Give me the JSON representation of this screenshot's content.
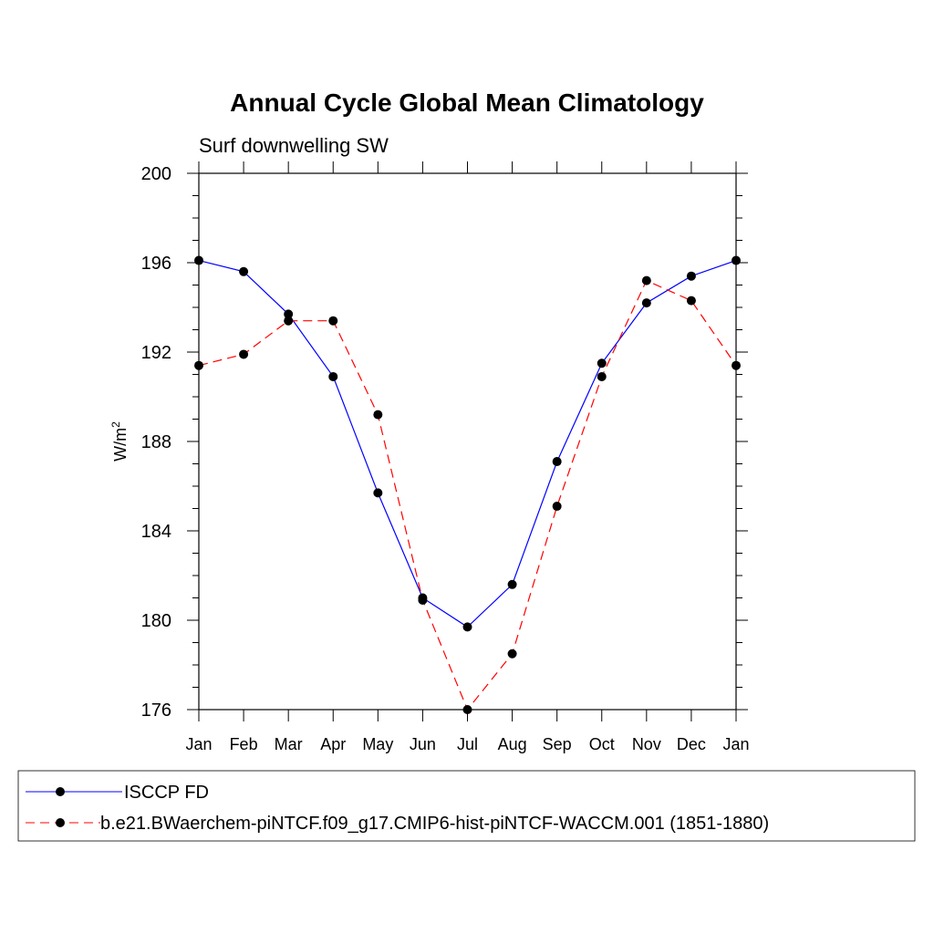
{
  "chart_data": {
    "type": "line",
    "title": "Annual Cycle Global Mean Climatology",
    "subtitle": "Surf downwelling SW",
    "ylabel_base": "W/m",
    "ylabel_sup": "2",
    "xlabel": "",
    "categories": [
      "Jan",
      "Feb",
      "Mar",
      "Apr",
      "May",
      "Jun",
      "Jul",
      "Aug",
      "Sep",
      "Oct",
      "Nov",
      "Dec",
      "Jan"
    ],
    "yticks": [
      176,
      180,
      184,
      188,
      192,
      196,
      200
    ],
    "ylim": [
      176,
      200
    ],
    "series": [
      {
        "name": "ISCCP FD",
        "color": "#0000ff",
        "dashed": false,
        "values": [
          196.1,
          195.6,
          193.7,
          190.9,
          185.7,
          181.0,
          179.7,
          181.6,
          187.1,
          191.5,
          194.2,
          195.4,
          196.1
        ]
      },
      {
        "name": "b.e21.BWaerchem-piNTCF.f09_g17.CMIP6-hist-piNTCF-WACCM.001 (1851-1880)",
        "color": "#ff0000",
        "dashed": true,
        "values": [
          191.4,
          191.9,
          193.4,
          193.4,
          189.2,
          180.9,
          176.0,
          178.5,
          185.1,
          190.9,
          195.2,
          194.3,
          191.4
        ]
      }
    ]
  }
}
